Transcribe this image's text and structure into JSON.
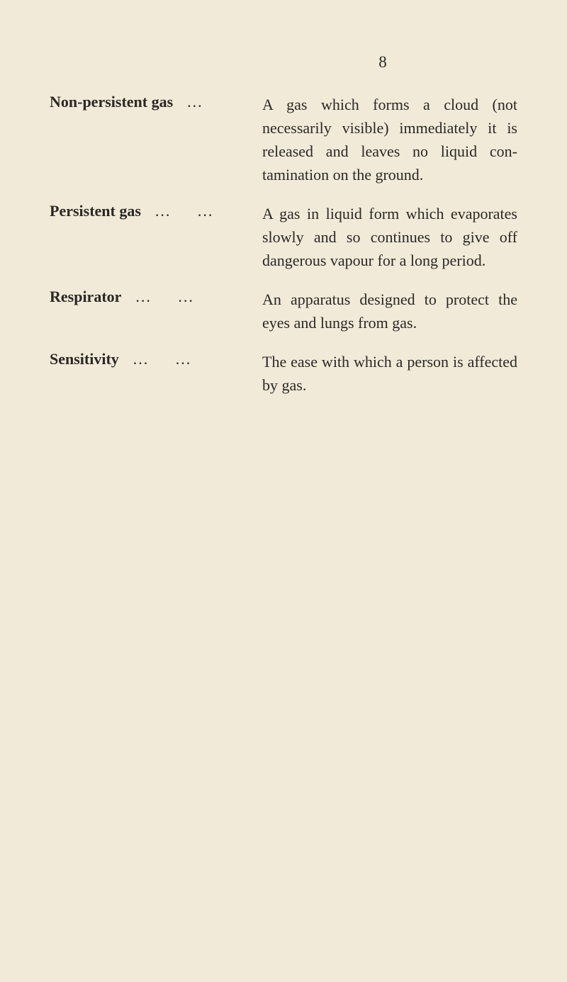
{
  "page_number": "8",
  "background_color": "#f2ead9",
  "text_color": "#2a2824",
  "definitions": [
    {
      "term": "Non-persistent gas",
      "dots1": "...",
      "dots2": "",
      "definition": "A gas which forms a cloud (not necessarily visible) immediately it is released and leaves no liquid con­tamination on the ground."
    },
    {
      "term": "Persistent gas",
      "dots1": "...",
      "dots2": "...",
      "definition": "A gas in liquid form which evaporates slowly and so continues to give off dangerous vapour for a long period."
    },
    {
      "term": "Respirator",
      "dots1": "...",
      "dots2": "...",
      "definition": "An apparatus designed to protect the eyes and lungs from gas."
    },
    {
      "term": "Sensitivity",
      "dots1": "...",
      "dots2": "...",
      "definition": "The ease with which a per­son is affected by gas."
    }
  ]
}
